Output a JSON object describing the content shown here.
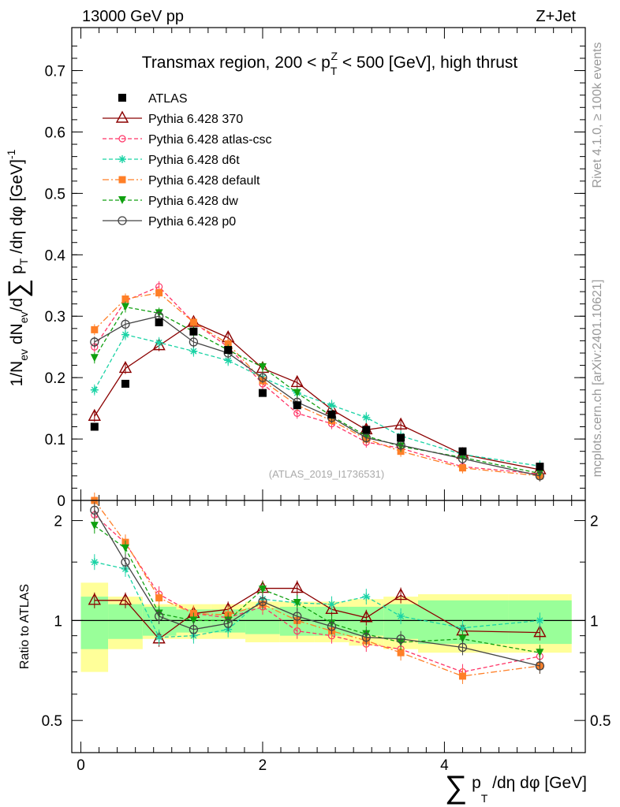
{
  "header": {
    "left": "13000 GeV pp",
    "right": "Z+Jet"
  },
  "side_labels": {
    "rivet": "Rivet 4.1.0, ≥ 100k events",
    "mcplots": "mcplots.cern.ch [arXiv:2401.10621]"
  },
  "watermark": "(ATLAS_2019_I1736531)",
  "colors": {
    "ATLAS": "#000000",
    "p370": "#8b0000",
    "atlascsc": "#ff3366",
    "d6t": "#1ad3a5",
    "default": "#ff7f27",
    "dw": "#10a010",
    "p0": "#444444",
    "band_outer": "#ffff99",
    "band_inner": "#99ff99"
  },
  "chart_data": [
    {
      "type": "scatter",
      "title": "Transmax region, 200 < p_T^Z < 500 [GeV], high thrust",
      "title_parts": {
        "pre": "Transmax region, 200 < p",
        "sub": "T",
        "sup": "Z",
        "post": " < 500 [GeV], high thrust"
      },
      "ylabel": "1/N_ev dN_ev/d∑p_T/dη dφ [GeV]^-1",
      "ylabel_parts": {
        "a": "1/N",
        "a_sub": "ev",
        "b": " dN",
        "b_sub": "ev",
        "c": "/d",
        "sum": "∑",
        "d": " p",
        "d_sub": "T",
        "e": " /dη dφ  [GeV]",
        "e_sup": "-1"
      },
      "xlim": [
        -0.1,
        5.55
      ],
      "ylim": [
        0,
        0.77
      ],
      "yticks": [
        0,
        0.1,
        0.2,
        0.3,
        0.4,
        0.5,
        0.6,
        0.7
      ],
      "ytick_labels": [
        "0",
        "0.1",
        "0.2",
        "0.3",
        "0.4",
        "0.5",
        "0.6",
        "0.7"
      ],
      "x": [
        0.15,
        0.49,
        0.86,
        1.24,
        1.62,
        2.0,
        2.38,
        2.76,
        3.14,
        3.52,
        4.2,
        5.05
      ],
      "series": [
        {
          "name": "ATLAS",
          "key": "ATLAS",
          "values": [
            0.12,
            0.19,
            0.29,
            0.275,
            0.245,
            0.175,
            0.155,
            0.14,
            0.115,
            0.102,
            0.08,
            0.055
          ]
        },
        {
          "name": "Pythia 6.428 370",
          "key": "p370",
          "values": [
            0.137,
            0.215,
            0.252,
            0.29,
            0.265,
            0.215,
            0.192,
            0.148,
            0.115,
            0.123,
            0.075,
            0.05
          ]
        },
        {
          "name": "Pythia 6.428 atlas-csc",
          "key": "atlascsc",
          "values": [
            0.25,
            0.325,
            0.348,
            0.29,
            0.25,
            0.19,
            0.142,
            0.125,
            0.095,
            0.085,
            0.055,
            0.043
          ]
        },
        {
          "name": "Pythia 6.428 d6t",
          "key": "d6t",
          "values": [
            0.18,
            0.27,
            0.257,
            0.243,
            0.228,
            0.2,
            0.175,
            0.155,
            0.135,
            0.105,
            0.075,
            0.056
          ]
        },
        {
          "name": "Pythia 6.428 default",
          "key": "default",
          "values": [
            0.278,
            0.328,
            0.338,
            0.29,
            0.255,
            0.195,
            0.155,
            0.13,
            0.1,
            0.08,
            0.053,
            0.04
          ]
        },
        {
          "name": "Pythia 6.428 dw",
          "key": "dw",
          "values": [
            0.232,
            0.315,
            0.305,
            0.275,
            0.245,
            0.217,
            0.175,
            0.137,
            0.105,
            0.088,
            0.07,
            0.044
          ]
        },
        {
          "name": "Pythia 6.428 p0",
          "key": "p0",
          "values": [
            0.258,
            0.287,
            0.3,
            0.258,
            0.24,
            0.2,
            0.16,
            0.135,
            0.102,
            0.09,
            0.068,
            0.04
          ]
        }
      ]
    },
    {
      "type": "line",
      "ylabel": "Ratio to ATLAS",
      "xlabel": "∑p_T/dη dφ [GeV]",
      "xlabel_parts": {
        "sum": "∑",
        "a": " p",
        "a_sub": "T",
        "b": " /dη dφ [GeV]"
      },
      "xlim": [
        -0.1,
        5.55
      ],
      "ylim": [
        0.4,
        2.3
      ],
      "yscale": "log",
      "xticks": [
        0,
        2,
        4
      ],
      "xtick_labels": [
        "0",
        "2",
        "4"
      ],
      "yticks": [
        0.5,
        1,
        2
      ],
      "ytick_labels": [
        "0.5",
        "1",
        "2"
      ],
      "bin_edges": [
        0,
        0.3,
        0.68,
        1.05,
        1.43,
        1.81,
        2.19,
        2.57,
        2.95,
        3.33,
        3.71,
        4.7,
        5.4
      ],
      "band_outer_half_width": [
        0.3,
        0.18,
        0.12,
        0.12,
        0.12,
        0.14,
        0.14,
        0.14,
        0.16,
        0.18,
        0.2,
        0.2
      ],
      "band_inner_half_width": [
        0.18,
        0.12,
        0.1,
        0.08,
        0.08,
        0.09,
        0.1,
        0.1,
        0.1,
        0.12,
        0.15,
        0.15
      ],
      "x": [
        0.15,
        0.49,
        0.86,
        1.24,
        1.62,
        2.0,
        2.38,
        2.76,
        3.14,
        3.52,
        4.2,
        5.05
      ],
      "series": [
        {
          "name": "Pythia 6.428 370",
          "key": "p370",
          "values": [
            1.15,
            1.15,
            0.88,
            1.05,
            1.08,
            1.25,
            1.25,
            1.08,
            1.02,
            1.19,
            0.93,
            0.92
          ]
        },
        {
          "name": "Pythia 6.428 atlas-csc",
          "key": "atlascsc",
          "values": [
            2.08,
            1.71,
            1.2,
            1.05,
            1.02,
            1.1,
            0.93,
            0.9,
            0.85,
            0.82,
            0.7,
            0.78
          ]
        },
        {
          "name": "Pythia 6.428 d6t",
          "key": "d6t",
          "values": [
            1.5,
            1.43,
            0.89,
            0.9,
            0.94,
            1.16,
            1.13,
            1.12,
            1.18,
            1.03,
            0.95,
            1.0
          ]
        },
        {
          "name": "Pythia 6.428 default",
          "key": "default",
          "values": [
            2.3,
            1.72,
            1.17,
            1.05,
            1.04,
            1.12,
            1.0,
            0.93,
            0.87,
            0.8,
            0.68,
            0.73
          ]
        },
        {
          "name": "Pythia 6.428 dw",
          "key": "dw",
          "values": [
            1.93,
            1.65,
            1.05,
            1.0,
            1.0,
            1.24,
            1.13,
            0.98,
            0.91,
            0.86,
            0.88,
            0.8
          ]
        },
        {
          "name": "Pythia 6.428 p0",
          "key": "p0",
          "values": [
            2.15,
            1.5,
            1.03,
            0.94,
            0.98,
            1.14,
            1.03,
            0.96,
            0.89,
            0.88,
            0.83,
            0.73
          ]
        }
      ]
    }
  ]
}
